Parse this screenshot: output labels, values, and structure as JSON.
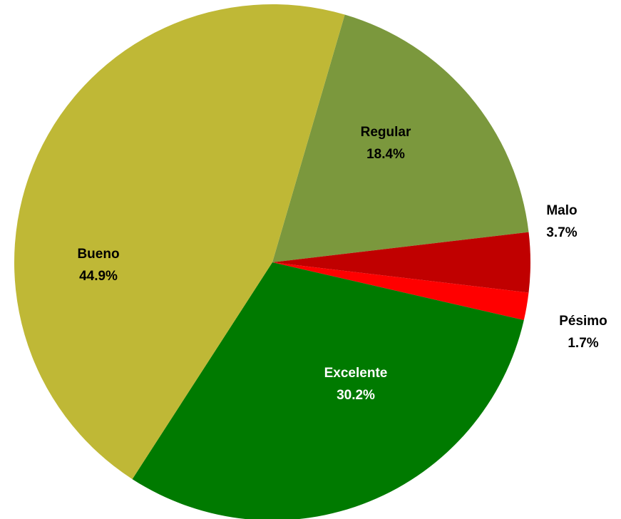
{
  "chart_data": {
    "type": "pie",
    "title": "",
    "start_angle_deg": 16.3,
    "direction": "clockwise",
    "legend": "none",
    "slices": [
      {
        "name": "Regular",
        "value": 18.4,
        "label": "18.4%",
        "color": "#7B983D",
        "label_color": "#000000",
        "label_position": "inside"
      },
      {
        "name": "Malo",
        "value": 3.7,
        "label": "3.7%",
        "color": "#C00000",
        "label_color": "#000000",
        "label_position": "outside"
      },
      {
        "name": "Pésimo",
        "value": 1.7,
        "label": "1.7%",
        "color": "#FF0000",
        "label_color": "#000000",
        "label_position": "outside"
      },
      {
        "name": "Excelente",
        "value": 30.2,
        "label": "30.2%",
        "color": "#007A00",
        "label_color": "#FFFFFF",
        "label_position": "inside"
      },
      {
        "name": "Bueno",
        "value": 44.9,
        "label": "44.9%",
        "color": "#BFB836",
        "label_color": "#000000",
        "label_position": "inside"
      }
    ]
  }
}
